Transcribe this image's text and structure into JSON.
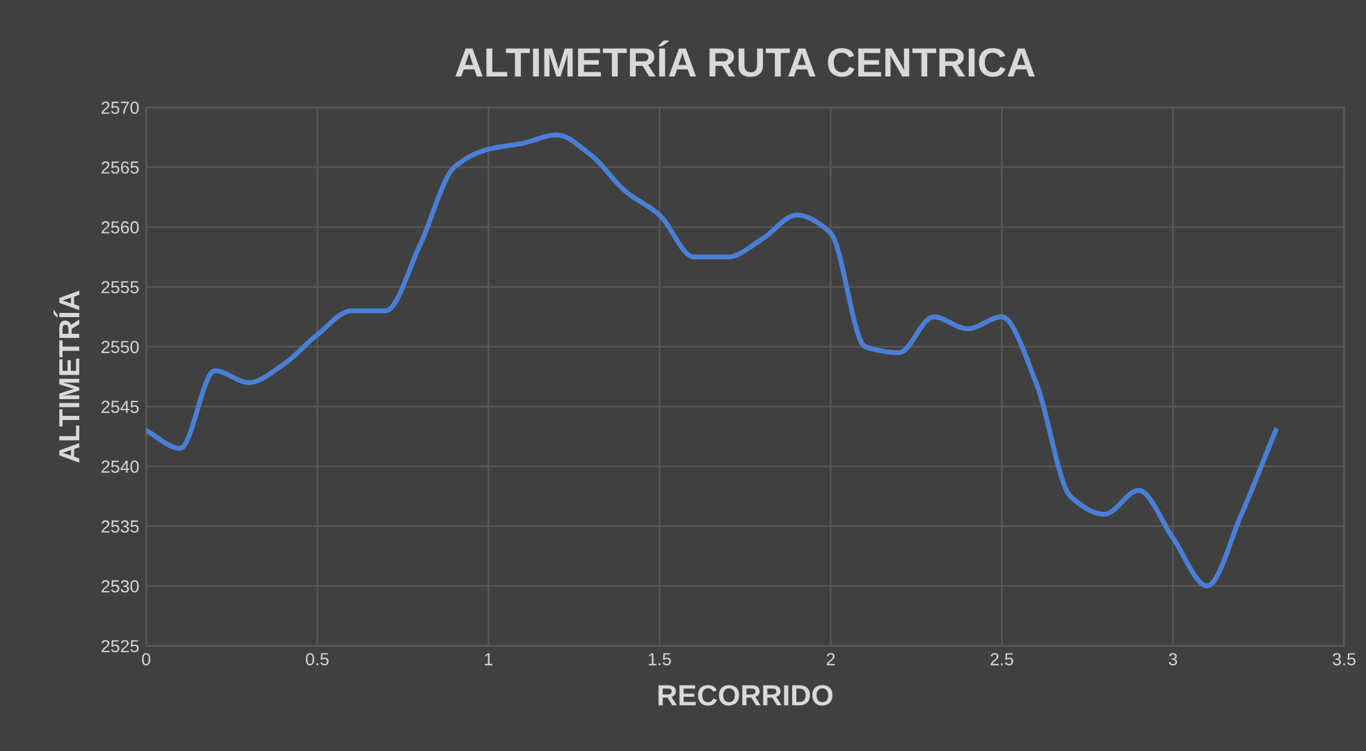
{
  "chart_data": {
    "type": "line",
    "title": "ALTIMETRÍA RUTA CENTRICA",
    "xlabel": "RECORRIDO",
    "ylabel": "ALTIMETRÍA",
    "x": [
      0,
      0.1,
      0.2,
      0.3,
      0.4,
      0.5,
      0.6,
      0.7,
      0.8,
      0.9,
      1.0,
      1.1,
      1.2,
      1.3,
      1.4,
      1.5,
      1.6,
      1.7,
      1.8,
      1.9,
      2.0,
      2.1,
      2.2,
      2.3,
      2.4,
      2.5,
      2.6,
      2.7,
      2.8,
      2.9,
      3.0,
      3.1,
      3.2,
      3.3
    ],
    "series": [
      {
        "color": "#4a7fd6",
        "values": [
          2543,
          2541.5,
          2548,
          2547,
          2548.5,
          2551,
          2553,
          2553,
          2558.5,
          2565,
          2566.5,
          2567,
          2567.7,
          2566,
          2563,
          2561,
          2557.5,
          2557.5,
          2559,
          2561,
          2559.5,
          2550,
          2549.5,
          2552.5,
          2551.5,
          2552.5,
          2547,
          2537.5,
          2536,
          2538,
          2534,
          2530,
          2536,
          2543
        ]
      }
    ],
    "xlim": [
      0,
      3.5
    ],
    "xticks": [
      0,
      0.5,
      1,
      1.5,
      2,
      2.5,
      3,
      3.5
    ],
    "ylim": [
      2525,
      2570
    ],
    "yticks": [
      2525,
      2530,
      2535,
      2540,
      2545,
      2550,
      2555,
      2560,
      2565,
      2570
    ],
    "grid": true,
    "marker": "none",
    "line_style": "solid"
  }
}
